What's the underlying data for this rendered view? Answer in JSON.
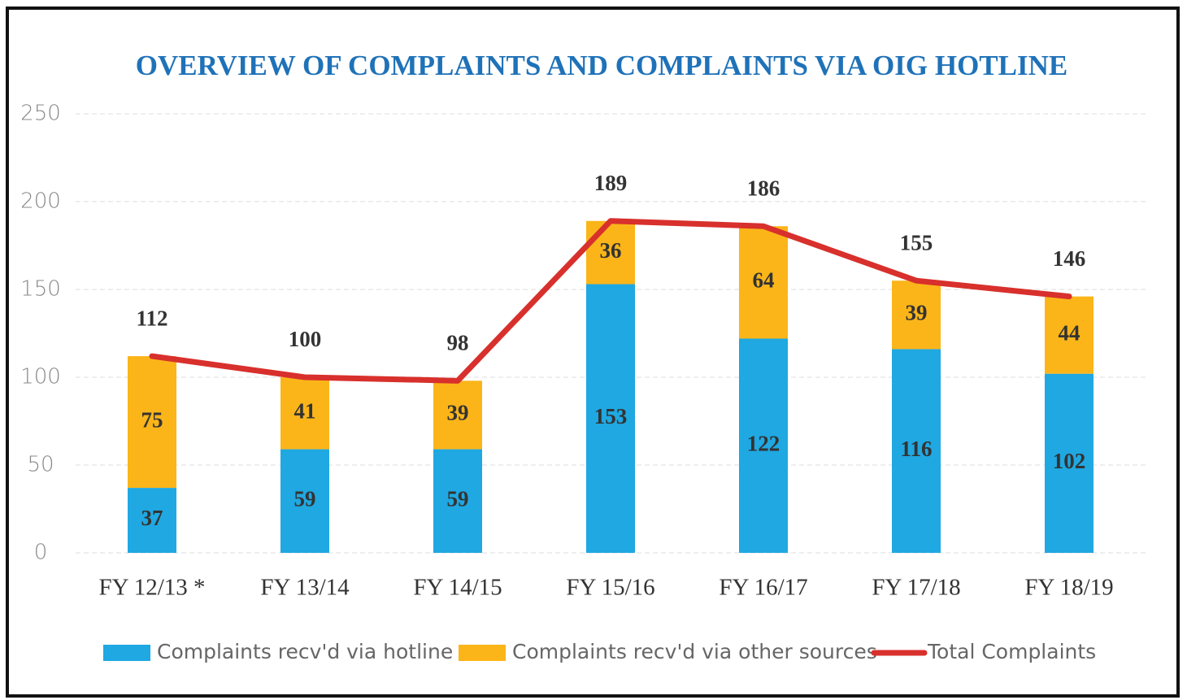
{
  "chart_data": {
    "type": "bar",
    "stacked": true,
    "title": "OVERVIEW OF COMPLAINTS AND COMPLAINTS VIA OIG HOTLINE",
    "categories": [
      "FY 12/13 *",
      "FY 13/14",
      "FY 14/15",
      "FY 15/16",
      "FY 16/17",
      "FY 17/18",
      "FY 18/19"
    ],
    "series": [
      {
        "name": "Complaints recv'd via hotline",
        "color": "#1fa8e2",
        "type": "bar",
        "values": [
          37,
          59,
          59,
          153,
          122,
          116,
          102
        ]
      },
      {
        "name": "Complaints recv'd via other sources",
        "color": "#fbb519",
        "type": "bar",
        "values": [
          75,
          41,
          39,
          36,
          64,
          39,
          44
        ]
      },
      {
        "name": "Total Complaints",
        "color": "#d8302c",
        "type": "line",
        "values": [
          112,
          100,
          98,
          189,
          186,
          155,
          146
        ]
      }
    ],
    "ylim": [
      0,
      250
    ],
    "yticks": [
      0,
      50,
      100,
      150,
      200,
      250
    ],
    "grid": true,
    "legend": "bottom"
  }
}
